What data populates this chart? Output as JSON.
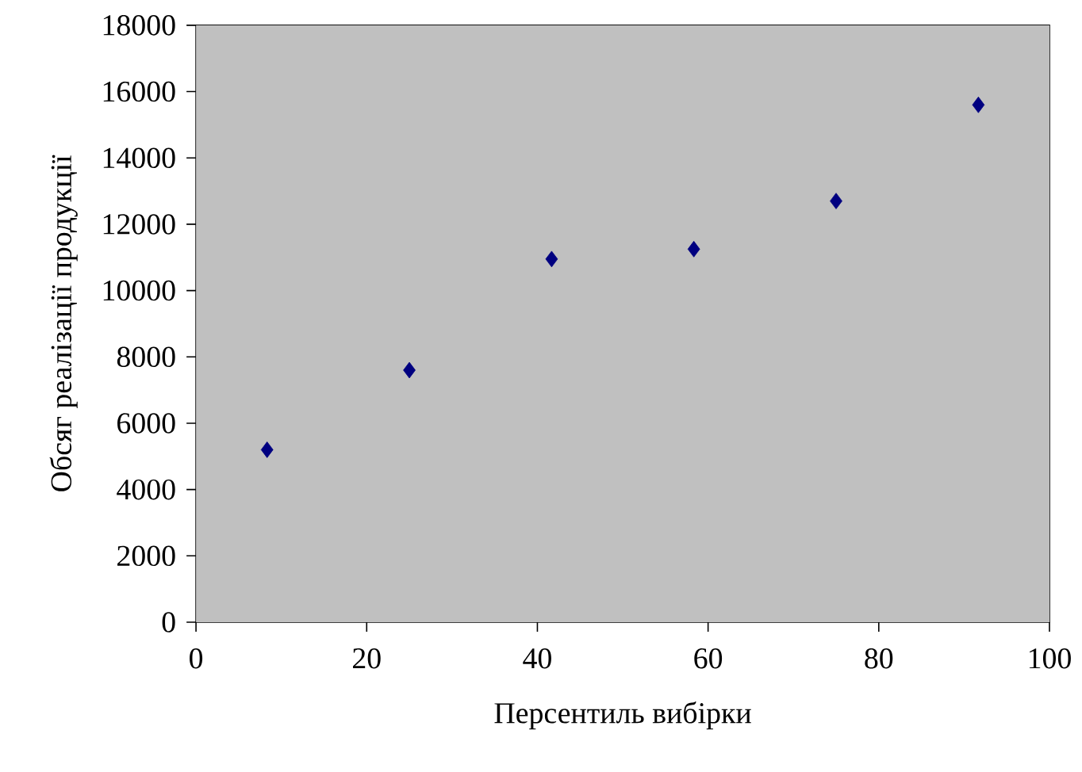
{
  "chart_data": {
    "type": "scatter",
    "xlabel": "Персентиль вибірки",
    "ylabel": "Обсяг реалізації продукції",
    "x": [
      8.33,
      25,
      41.67,
      58.33,
      75,
      91.67
    ],
    "series": [
      {
        "color": "#000080",
        "values": [
          5200,
          7600,
          10950,
          11250,
          12700,
          15600
        ]
      }
    ],
    "xlim": [
      0,
      100
    ],
    "xticks": [
      0,
      20,
      40,
      60,
      80,
      100
    ],
    "ylim": [
      0,
      18000
    ],
    "yticks": [
      0,
      2000,
      4000,
      6000,
      8000,
      10000,
      12000,
      14000,
      16000,
      18000
    ],
    "marker": "diamond"
  }
}
